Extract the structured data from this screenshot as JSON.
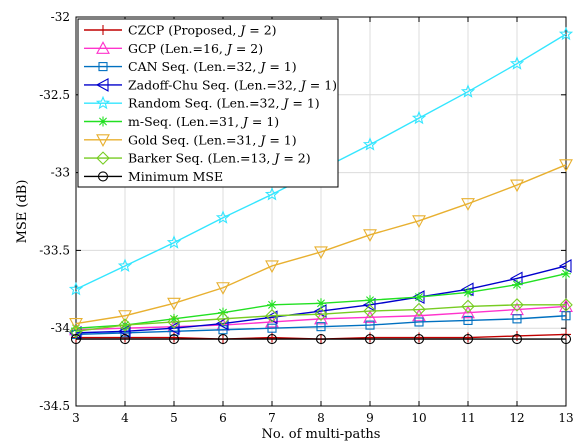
{
  "chart_data": {
    "type": "line",
    "xlabel": "No. of multi-paths",
    "ylabel": "MSE (dB)",
    "xlim": [
      3,
      13
    ],
    "ylim": [
      -34.5,
      -32
    ],
    "x_ticks": [
      3,
      4,
      5,
      6,
      7,
      8,
      9,
      10,
      11,
      12,
      13
    ],
    "y_ticks": [
      -34.5,
      -34,
      -33.5,
      -33,
      -32.5,
      -32
    ],
    "y_tick_labels": [
      "-34.5",
      "-34",
      "-33.5",
      "-33",
      "-32.5",
      "-32"
    ],
    "grid": true,
    "legend_position": "top-left",
    "x": [
      3,
      4,
      5,
      6,
      7,
      8,
      9,
      10,
      11,
      12,
      13
    ],
    "series": [
      {
        "name": "CZCP (Proposed, J = 2)",
        "legend_text": [
          "CZCP (Proposed, ",
          "J",
          " = 2)"
        ],
        "color": "#c00000",
        "marker": "plus",
        "values": [
          -34.06,
          -34.06,
          -34.06,
          -34.07,
          -34.06,
          -34.07,
          -34.06,
          -34.06,
          -34.06,
          -34.05,
          -34.04
        ]
      },
      {
        "name": "GCP (Len.=16, J = 2)",
        "legend_text": [
          "GCP (Len.=16, ",
          "J",
          " = 2)"
        ],
        "color": "#ff33cc",
        "marker": "triangle-up",
        "values": [
          -34.01,
          -34.0,
          -33.99,
          -33.98,
          -33.96,
          -33.94,
          -33.93,
          -33.92,
          -33.9,
          -33.88,
          -33.86
        ]
      },
      {
        "name": "CAN Seq. (Len.=32, J = 1)",
        "legend_text": [
          "CAN Seq. (Len.=32, ",
          "J",
          " = 1)"
        ],
        "color": "#0070c0",
        "marker": "square",
        "values": [
          -34.04,
          -34.03,
          -34.02,
          -34.01,
          -34.0,
          -33.99,
          -33.98,
          -33.96,
          -33.95,
          -33.94,
          -33.92
        ]
      },
      {
        "name": "Zadoff-Chu Seq. (Len.=32, J = 1)",
        "legend_text": [
          "Zadoff-Chu Seq. (Len.=32, ",
          "J",
          " = 1)"
        ],
        "color": "#0000cc",
        "marker": "triangle-left",
        "values": [
          -34.03,
          -34.02,
          -34.0,
          -33.97,
          -33.93,
          -33.89,
          -33.85,
          -33.8,
          -33.75,
          -33.68,
          -33.6
        ]
      },
      {
        "name": "Random Seq. (Len.=32, J = 1)",
        "legend_text": [
          "Random Seq. (Len.=32, ",
          "J",
          " = 1)"
        ],
        "color": "#33e6ff",
        "marker": "star",
        "values": [
          -33.75,
          -33.6,
          -33.45,
          -33.29,
          -33.14,
          -32.98,
          -32.82,
          -32.65,
          -32.48,
          -32.3,
          -32.11
        ]
      },
      {
        "name": "m-Seq. (Len.=31, J = 1)",
        "legend_text": [
          "m-Seq. (Len.=31, ",
          "J",
          " = 1)"
        ],
        "color": "#22e022",
        "marker": "asterisk",
        "values": [
          -34.0,
          -33.98,
          -33.94,
          -33.9,
          -33.85,
          -33.84,
          -33.82,
          -33.8,
          -33.77,
          -33.72,
          -33.65
        ]
      },
      {
        "name": "Gold Seq. (Len.=31, J = 1)",
        "legend_text": [
          "Gold Seq. (Len.=31, ",
          "J",
          " = 1)"
        ],
        "color": "#e8b030",
        "marker": "triangle-down",
        "values": [
          -33.97,
          -33.92,
          -33.84,
          -33.74,
          -33.6,
          -33.51,
          -33.4,
          -33.31,
          -33.2,
          -33.08,
          -32.95
        ]
      },
      {
        "name": "Barker Seq. (Len.=13, J = 2)",
        "legend_text": [
          "Barker Seq. (Len.=13, ",
          "J",
          " = 2)"
        ],
        "color": "#77cc22",
        "marker": "diamond",
        "values": [
          -34.02,
          -33.98,
          -33.96,
          -33.94,
          -33.92,
          -33.91,
          -33.89,
          -33.88,
          -33.86,
          -33.85,
          -33.85
        ]
      },
      {
        "name": "Minimum MSE",
        "legend_text": [
          "Minimum MSE"
        ],
        "color": "#000000",
        "marker": "circle",
        "values": [
          -34.07,
          -34.07,
          -34.07,
          -34.07,
          -34.07,
          -34.07,
          -34.07,
          -34.07,
          -34.07,
          -34.07,
          -34.07
        ]
      }
    ]
  }
}
